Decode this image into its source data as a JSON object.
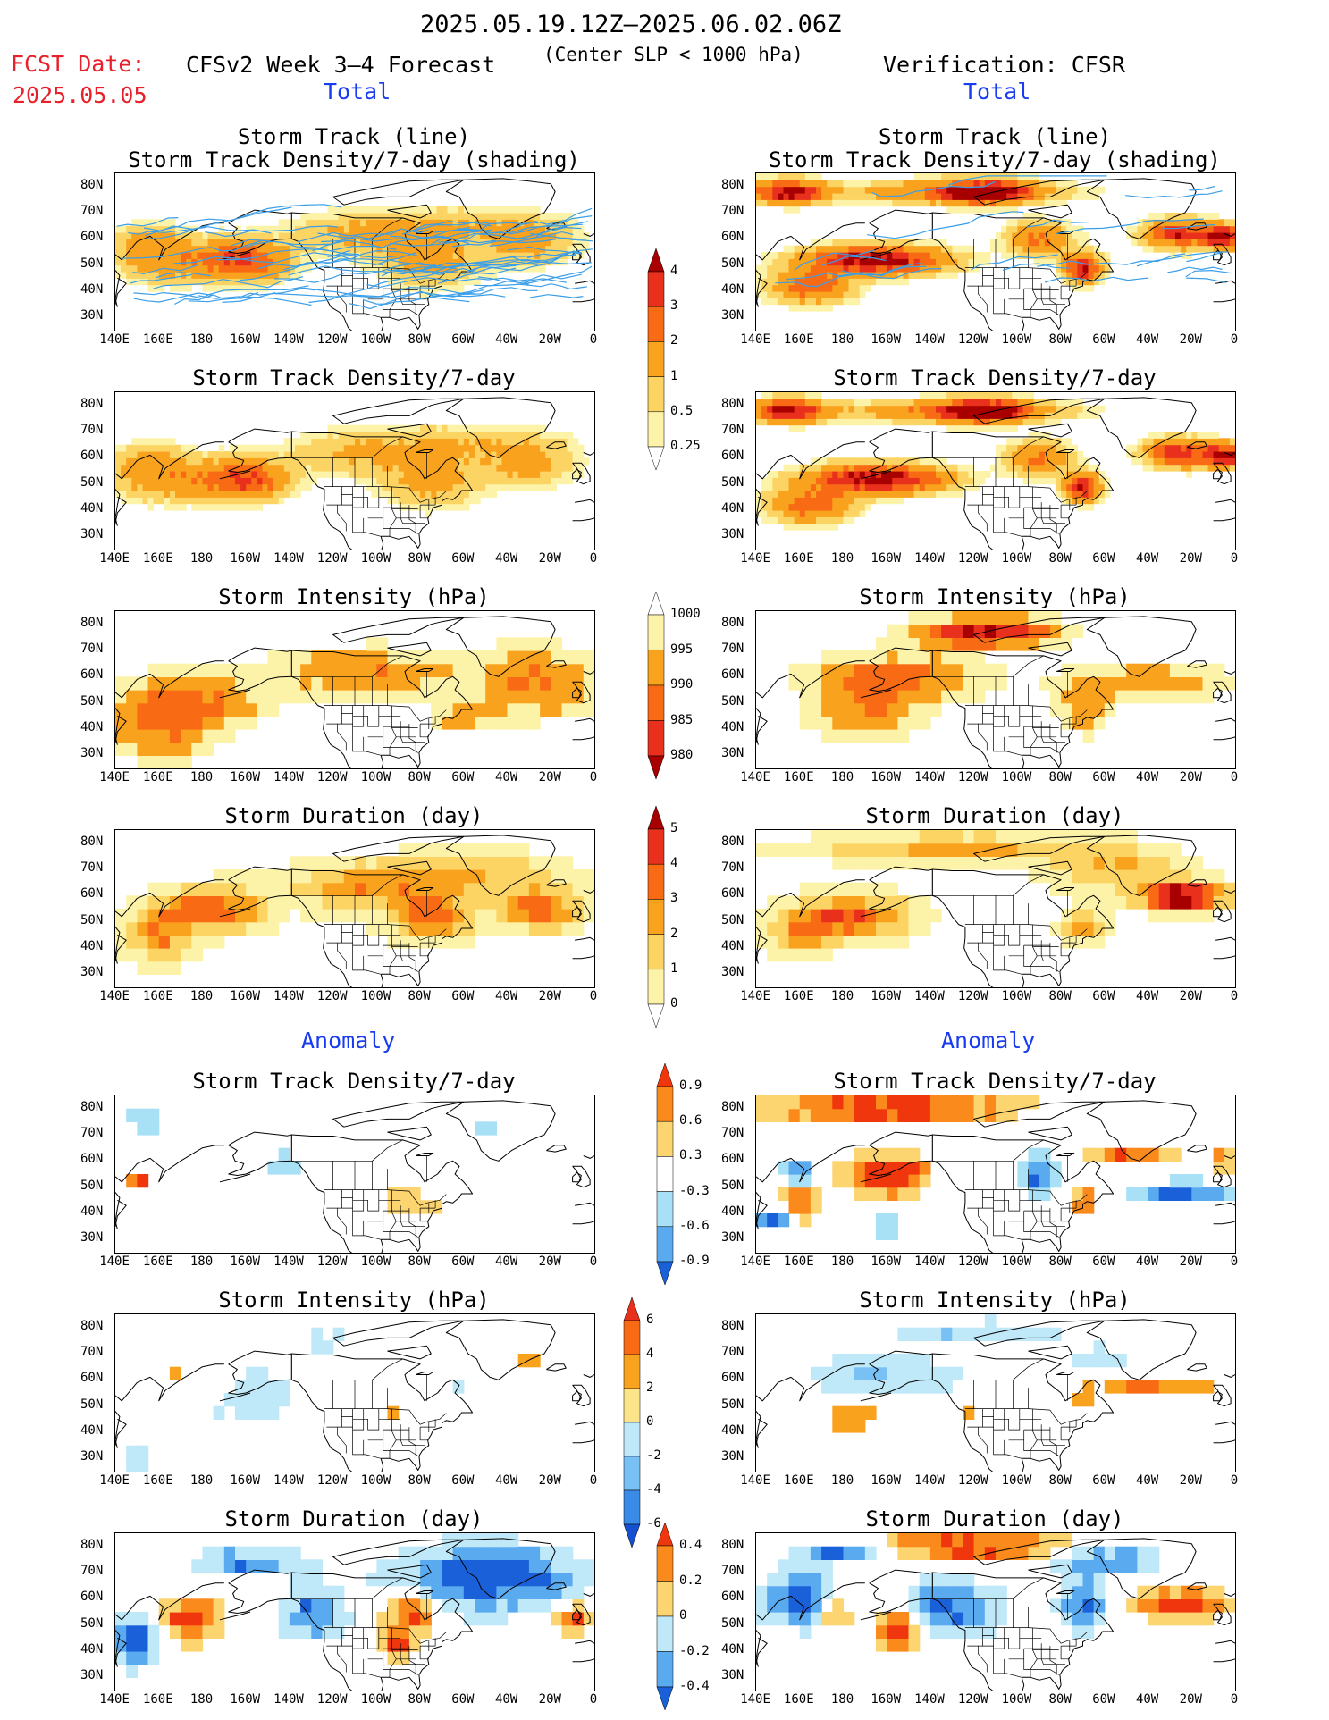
{
  "header": {
    "date_range": "2025.05.19.12Z–2025.06.02.06Z",
    "fcst_label": "FCST Date:",
    "fcst_date": "2025.05.05",
    "forecast_title": "CFSv2 Week 3–4 Forecast",
    "criterion": "(Center SLP < 1000 hPa)",
    "verification": "Verification: CFSR"
  },
  "sections": {
    "total": "Total",
    "anomaly": "Anomaly"
  },
  "panel_titles": {
    "track_line": "Storm Track (line)",
    "track_shading": "Storm Track Density/7-day (shading)",
    "density": "Storm Track Density/7-day",
    "intensity": "Storm Intensity (hPa)",
    "duration": "Storm Duration (day)"
  },
  "axes": {
    "lon_labels": [
      "140E",
      "160E",
      "180",
      "160W",
      "140W",
      "120W",
      "100W",
      "80W",
      "60W",
      "40W",
      "20W",
      "0"
    ],
    "lat_labels": [
      "80N",
      "70N",
      "60N",
      "50N",
      "40N",
      "30N"
    ]
  },
  "colorbars": {
    "density_total": {
      "labels": [
        "4",
        "3",
        "2",
        "1",
        "0.5",
        "0.25"
      ],
      "colors": [
        "#a80000",
        "#e8301c",
        "#f86a14",
        "#f9a21e",
        "#fbd463",
        "#fdf3a8"
      ]
    },
    "intensity_total": {
      "labels": [
        "1000",
        "995",
        "990",
        "985",
        "980"
      ],
      "colors": [
        "#fdf3a8",
        "#f9a21e",
        "#f86a14",
        "#e8301c",
        "#a80000"
      ]
    },
    "duration_total": {
      "labels": [
        "5",
        "4",
        "3",
        "2",
        "1",
        "0"
      ],
      "colors": [
        "#a80000",
        "#e8301c",
        "#f86a14",
        "#f9a21e",
        "#fbd463",
        "#fdf3a8"
      ]
    },
    "density_anom": {
      "labels": [
        "0.9",
        "0.6",
        "0.3",
        "-0.3",
        "-0.6",
        "-0.9"
      ],
      "colors": [
        "#f0360c",
        "#fb8a1c",
        "#fcd470",
        "#ffffff",
        "#a8e0f6",
        "#5aaaf0",
        "#1a60d8"
      ]
    },
    "intensity_anom": {
      "labels": [
        "6",
        "4",
        "2",
        "0",
        "-2",
        "-4",
        "-6"
      ],
      "colors": [
        "#e8301c",
        "#f86a14",
        "#f9a21e",
        "#fce48a",
        "#bfe8f8",
        "#79c0f4",
        "#3a8ae8",
        "#1450d0"
      ]
    },
    "duration_anom": {
      "labels": [
        "0.4",
        "0.2",
        "0",
        "-0.2",
        "-0.4"
      ],
      "colors": [
        "#f0360c",
        "#fb8a1c",
        "#fcd470",
        "#bfe8f8",
        "#5aaaf0",
        "#1a60d8"
      ]
    }
  }
}
